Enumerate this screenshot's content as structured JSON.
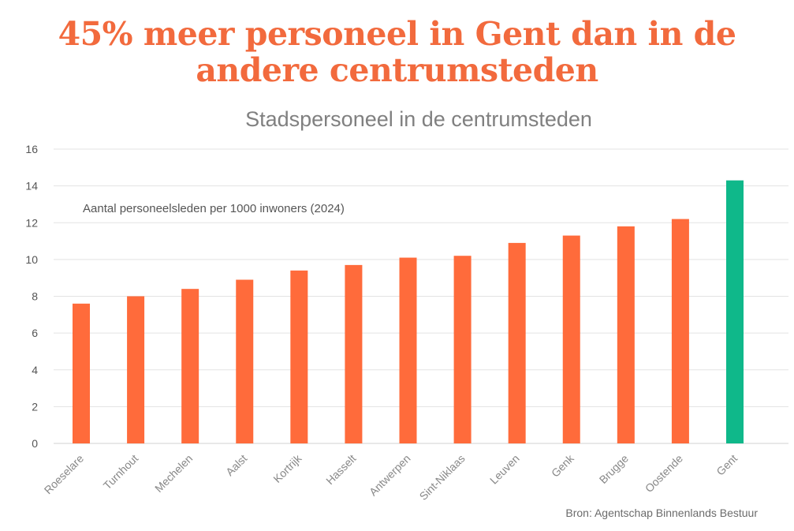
{
  "headline": "45% meer personeel in Gent dan in de andere centrumsteden",
  "source": "Bron: Agentschap Binnenlands Bestuur",
  "colors": {
    "bar": "#ff6b3b",
    "highlight": "#0fb88a",
    "headline": "#f26a3d",
    "grid": "#e3e3e3",
    "axis_text": "#888888"
  },
  "chart_data": {
    "type": "bar",
    "title": "Stadspersoneel in de centrumsteden",
    "annotation": "Aantal personeelsleden per 1000 inwoners (2024)",
    "xlabel": "",
    "ylabel": "",
    "ylim": [
      0,
      16
    ],
    "yticks": [
      0,
      2,
      4,
      6,
      8,
      10,
      12,
      14,
      16
    ],
    "grid": true,
    "categories": [
      "Roeselare",
      "Turnhout",
      "Mechelen",
      "Aalst",
      "Kortrijk",
      "Hasselt",
      "Antwerpen",
      "Sint-Niklaas",
      "Leuven",
      "Genk",
      "Brugge",
      "Oostende",
      "Gent"
    ],
    "values": [
      7.6,
      8.0,
      8.4,
      8.9,
      9.4,
      9.7,
      10.1,
      10.2,
      10.9,
      11.3,
      11.8,
      12.2,
      14.3
    ],
    "highlight": "Gent"
  }
}
